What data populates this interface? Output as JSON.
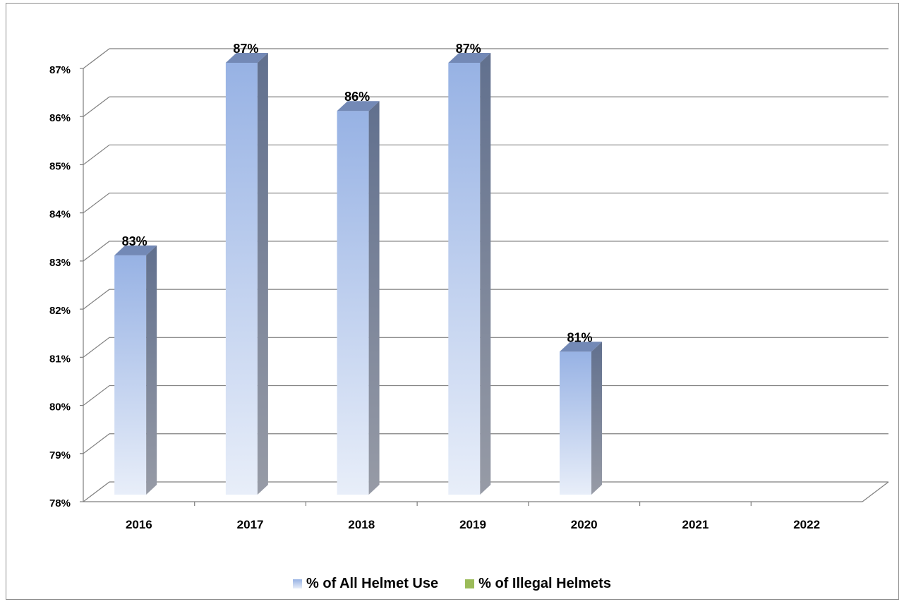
{
  "chart_data": {
    "type": "bar",
    "title": "",
    "xlabel": "",
    "ylabel": "",
    "categories": [
      "2016",
      "2017",
      "2018",
      "2019",
      "2020",
      "2021",
      "2022"
    ],
    "series": [
      {
        "name": "% of All Helmet Use",
        "values": [
          83,
          87,
          86,
          87,
          81,
          null,
          null
        ],
        "data_labels": [
          "83%",
          "87%",
          "86%",
          "87%",
          "81%",
          "",
          ""
        ],
        "color": "#9db5e6"
      },
      {
        "name": "% of Illegal Helmets",
        "values": [
          null,
          null,
          null,
          null,
          null,
          null,
          null
        ],
        "data_labels": [
          "",
          "",
          "",
          "",
          "",
          "",
          ""
        ],
        "color": "#9bbb59"
      }
    ],
    "ylim": [
      78,
      87
    ],
    "y_ticks": [
      "78%",
      "79%",
      "80%",
      "81%",
      "82%",
      "83%",
      "84%",
      "85%",
      "86%",
      "87%"
    ],
    "grid": true,
    "style": "3d",
    "legend_position": "bottom"
  }
}
